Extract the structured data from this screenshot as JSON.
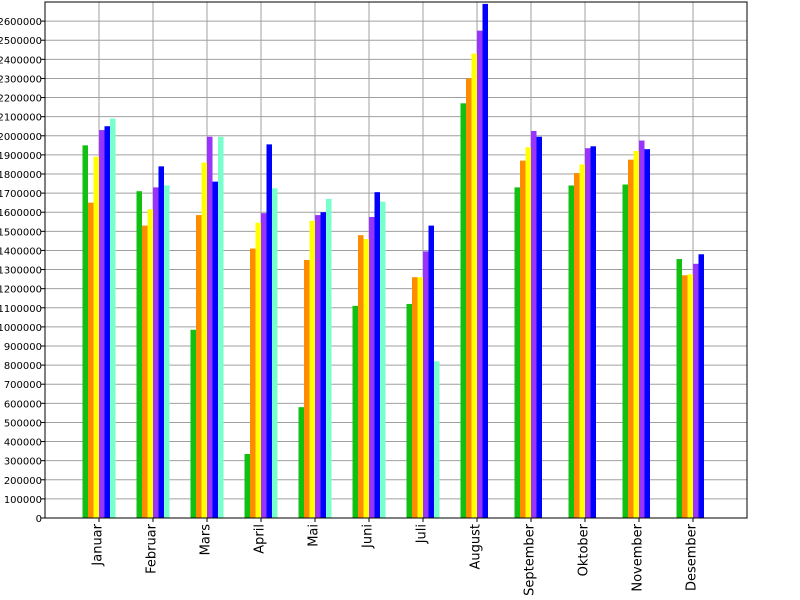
{
  "chart_data": {
    "type": "bar",
    "categories": [
      "Januar",
      "Februar",
      "Mars",
      "April",
      "Mai",
      "Juni",
      "Juli",
      "August",
      "September",
      "Oktober",
      "November",
      "Desember"
    ],
    "series": [
      {
        "color": "#11c011",
        "values": [
          1950000,
          1710000,
          985000,
          335000,
          580000,
          1110000,
          1120000,
          2170000,
          1730000,
          1740000,
          1745000,
          1355000
        ]
      },
      {
        "color": "#ff8c00",
        "values": [
          1650000,
          1530000,
          1585000,
          1410000,
          1350000,
          1480000,
          1260000,
          2300000,
          1870000,
          1805000,
          1875000,
          1270000
        ]
      },
      {
        "color": "#ffff00",
        "values": [
          1890000,
          1615000,
          1860000,
          1545000,
          1555000,
          1460000,
          1260000,
          2430000,
          1940000,
          1850000,
          1920000,
          1275000
        ]
      },
      {
        "color": "#9933ff",
        "values": [
          2030000,
          1730000,
          1995000,
          1595000,
          1585000,
          1575000,
          1395000,
          2550000,
          2025000,
          1935000,
          1975000,
          1330000
        ]
      },
      {
        "color": "#0000ff",
        "values": [
          2050000,
          1840000,
          1760000,
          1955000,
          1600000,
          1705000,
          1530000,
          2690000,
          1995000,
          1945000,
          1930000,
          1380000
        ]
      },
      {
        "color": "#77ffcc",
        "values": [
          2090000,
          1740000,
          1995000,
          1725000,
          1670000,
          1655000,
          820000,
          null,
          null,
          null,
          null,
          null
        ]
      }
    ],
    "ylim": [
      0,
      2700000
    ],
    "yticks": [
      0,
      100000,
      200000,
      300000,
      400000,
      500000,
      600000,
      700000,
      800000,
      900000,
      1000000,
      1100000,
      1200000,
      1300000,
      1400000,
      1500000,
      1600000,
      1700000,
      1800000,
      1900000,
      2000000,
      2100000,
      2200000,
      2300000,
      2400000,
      2500000,
      2600000
    ],
    "grid": true
  }
}
